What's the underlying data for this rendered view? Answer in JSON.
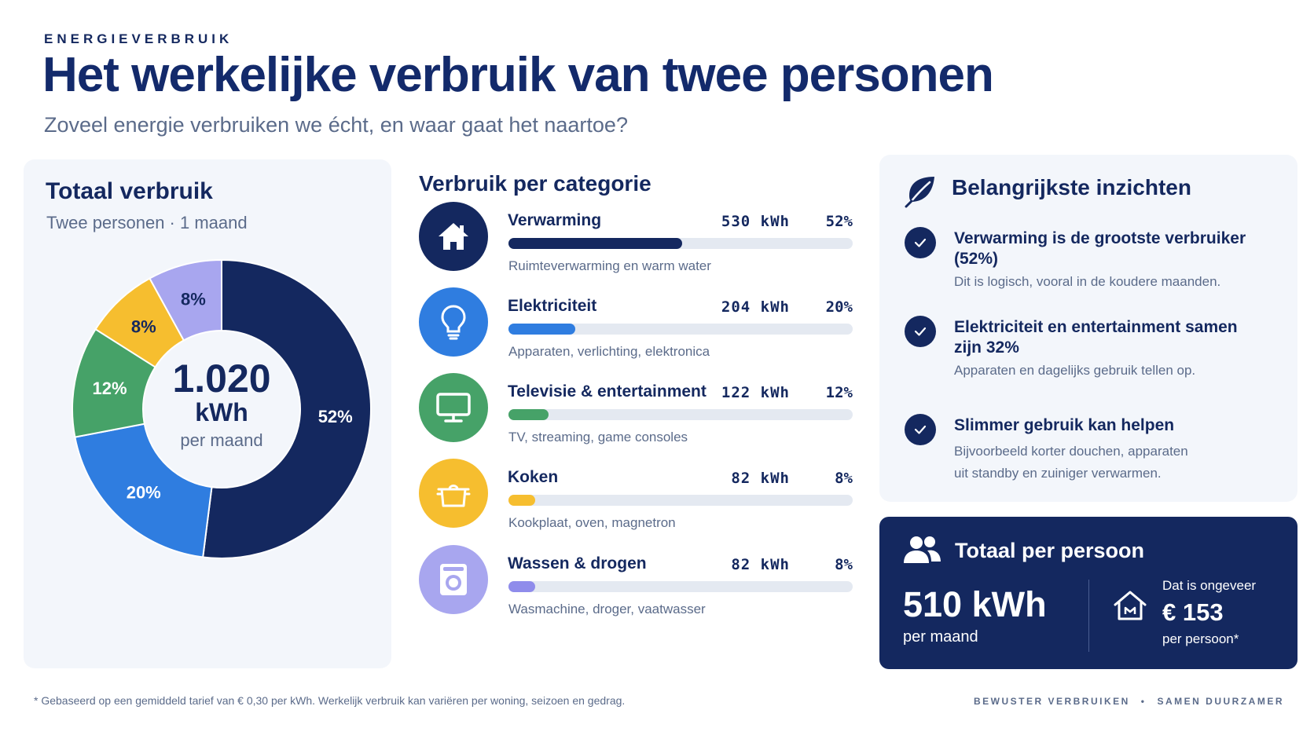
{
  "header": {
    "eyebrow": "ENERGIEVERBRUIK",
    "title": "Het werkelijke verbruik van twee personen",
    "subtitle": "Zoveel energie verbruiken we écht, en waar gaat het naartoe?"
  },
  "total": {
    "heading": "Totaal verbruik",
    "subheading": "Twee personen · 1 maand",
    "value": "1.020",
    "unit": "kWh",
    "period": "per maand"
  },
  "chart_data": {
    "type": "pie",
    "categories": [
      "Verwarming",
      "Elektriciteit",
      "Televisie & entertainment",
      "Koken",
      "Wassen & drogen"
    ],
    "values": [
      52,
      20,
      12,
      8,
      8
    ],
    "labels": [
      "52%",
      "20%",
      "12%",
      "8%",
      "8%"
    ],
    "colors": [
      "#14285f",
      "#2f7de0",
      "#46a268",
      "#f6be2f",
      "#a8a6ef"
    ],
    "label_colors": [
      "#ffffff",
      "#ffffff",
      "#ffffff",
      "#14285f",
      "#14285f"
    ]
  },
  "categories": {
    "heading": "Verbruik per categorie",
    "items": [
      {
        "name": "Verwarming",
        "kwh": "530 kWh",
        "pct": "52%",
        "share": 0.52,
        "desc": "Ruimteverwarming en warm water",
        "color": "#14285f",
        "icon": "house-icon"
      },
      {
        "name": "Elektriciteit",
        "kwh": "204 kWh",
        "pct": "20%",
        "share": 0.2,
        "desc": "Apparaten, verlichting, elektronica",
        "color": "#2f7de0",
        "icon": "lightbulb-icon"
      },
      {
        "name": "Televisie & entertainment",
        "kwh": "122 kWh",
        "pct": "12%",
        "share": 0.12,
        "desc": "TV, streaming, game consoles",
        "color": "#46a268",
        "icon": "monitor-icon"
      },
      {
        "name": "Koken",
        "kwh": "82 kWh",
        "pct": "8%",
        "share": 0.08,
        "desc": "Kookplaat, oven, magnetron",
        "color": "#f6be2f",
        "icon": "cooking-pot-icon"
      },
      {
        "name": "Wassen & drogen",
        "kwh": "82 kWh",
        "pct": "8%",
        "share": 0.08,
        "desc": "Wasmachine, droger, vaatwasser",
        "color": "#8f8ceb",
        "icon": "washing-machine-icon"
      }
    ]
  },
  "insights": {
    "heading": "Belangrijkste inzichten",
    "items": [
      {
        "title": "Verwarming is de grootste verbruiker (52%)",
        "desc": "Dit is logisch, vooral in de koudere maanden."
      },
      {
        "title": "Elektriciteit en entertainment samen zijn 32%",
        "desc": "Apparaten en dagelijks gebruik tellen op."
      },
      {
        "title": "Slimmer gebruik kan helpen",
        "desc": "Bijvoorbeeld korter douchen, apparaten uit standby en zuiniger verwarmen."
      }
    ]
  },
  "per_person": {
    "heading": "Totaal per persoon",
    "value": "510 kWh",
    "period": "per maand",
    "approx": "Dat is ongeveer",
    "cost": "€ 153",
    "cost_sub": "per persoon*"
  },
  "footer": {
    "note": "* Gebaseerd op een gemiddeld tarief van € 0,30 per kWh. Werkelijk verbruik kan variëren per woning, seizoen en gedrag.",
    "tag1": "BEWUSTER VERBRUIKEN",
    "sep": "•",
    "tag2": "SAMEN DUURZAMER"
  }
}
